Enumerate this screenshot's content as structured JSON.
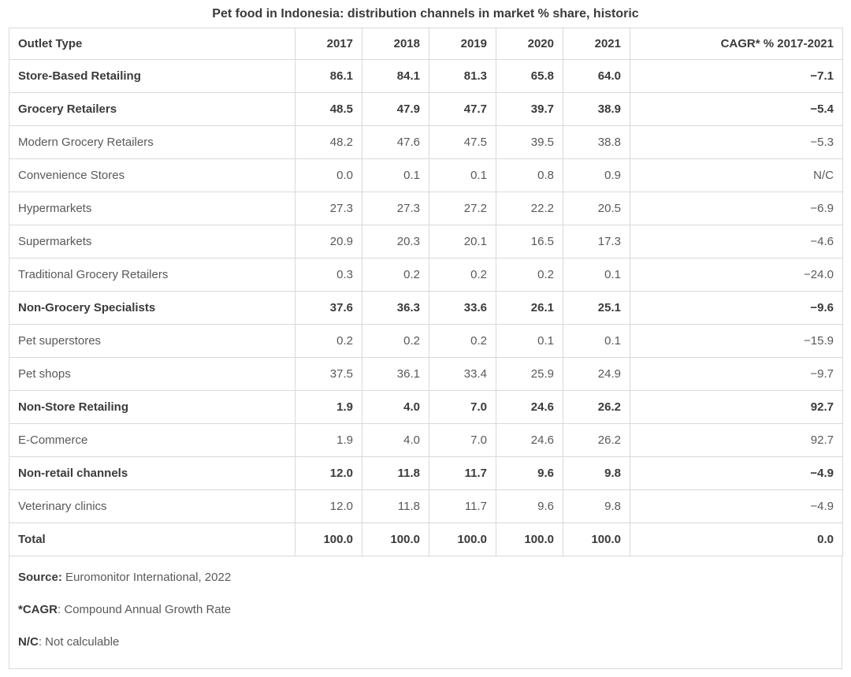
{
  "chart_data": {
    "type": "table",
    "title": "Pet food in Indonesia: distribution channels in market % share, historic",
    "columns": [
      "Outlet Type",
      "2017",
      "2018",
      "2019",
      "2020",
      "2021",
      "CAGR* % 2017-2021"
    ],
    "rows": [
      {
        "label": "Store-Based Retailing",
        "bold": true,
        "values": [
          "86.1",
          "84.1",
          "81.3",
          "65.8",
          "64.0",
          "−7.1"
        ]
      },
      {
        "label": "Grocery Retailers",
        "bold": true,
        "values": [
          "48.5",
          "47.9",
          "47.7",
          "39.7",
          "38.9",
          "−5.4"
        ]
      },
      {
        "label": "Modern Grocery Retailers",
        "bold": false,
        "values": [
          "48.2",
          "47.6",
          "47.5",
          "39.5",
          "38.8",
          "−5.3"
        ]
      },
      {
        "label": "Convenience Stores",
        "bold": false,
        "values": [
          "0.0",
          "0.1",
          "0.1",
          "0.8",
          "0.9",
          "N/C"
        ]
      },
      {
        "label": "Hypermarkets",
        "bold": false,
        "values": [
          "27.3",
          "27.3",
          "27.2",
          "22.2",
          "20.5",
          "−6.9"
        ]
      },
      {
        "label": "Supermarkets",
        "bold": false,
        "values": [
          "20.9",
          "20.3",
          "20.1",
          "16.5",
          "17.3",
          "−4.6"
        ]
      },
      {
        "label": "Traditional Grocery Retailers",
        "bold": false,
        "values": [
          "0.3",
          "0.2",
          "0.2",
          "0.2",
          "0.1",
          "−24.0"
        ]
      },
      {
        "label": "Non-Grocery Specialists",
        "bold": true,
        "values": [
          "37.6",
          "36.3",
          "33.6",
          "26.1",
          "25.1",
          "−9.6"
        ]
      },
      {
        "label": "Pet superstores",
        "bold": false,
        "values": [
          "0.2",
          "0.2",
          "0.2",
          "0.1",
          "0.1",
          "−15.9"
        ]
      },
      {
        "label": "Pet shops",
        "bold": false,
        "values": [
          "37.5",
          "36.1",
          "33.4",
          "25.9",
          "24.9",
          "−9.7"
        ]
      },
      {
        "label": "Non-Store Retailing",
        "bold": true,
        "values": [
          "1.9",
          "4.0",
          "7.0",
          "24.6",
          "26.2",
          "92.7"
        ]
      },
      {
        "label": "E-Commerce",
        "bold": false,
        "values": [
          "1.9",
          "4.0",
          "7.0",
          "24.6",
          "26.2",
          "92.7"
        ]
      },
      {
        "label": "Non-retail channels",
        "bold": true,
        "values": [
          "12.0",
          "11.8",
          "11.7",
          "9.6",
          "9.8",
          "−4.9"
        ]
      },
      {
        "label": "Veterinary clinics",
        "bold": false,
        "values": [
          "12.0",
          "11.8",
          "11.7",
          "9.6",
          "9.8",
          "−4.9"
        ]
      },
      {
        "label": "Total",
        "bold": true,
        "values": [
          "100.0",
          "100.0",
          "100.0",
          "100.0",
          "100.0",
          "0.0"
        ]
      }
    ]
  },
  "footnotes": [
    {
      "bold": "Source:",
      "rest": " Euromonitor International, 2022"
    },
    {
      "bold": "*CAGR",
      "rest": ": Compound Annual Growth Rate"
    },
    {
      "bold": "N/C",
      "rest": ": Not calculable"
    }
  ],
  "colors": {
    "text_dark": "#3b3b3b",
    "text_normal": "#595959",
    "border": "#d9d9d9",
    "background": "#ffffff"
  }
}
